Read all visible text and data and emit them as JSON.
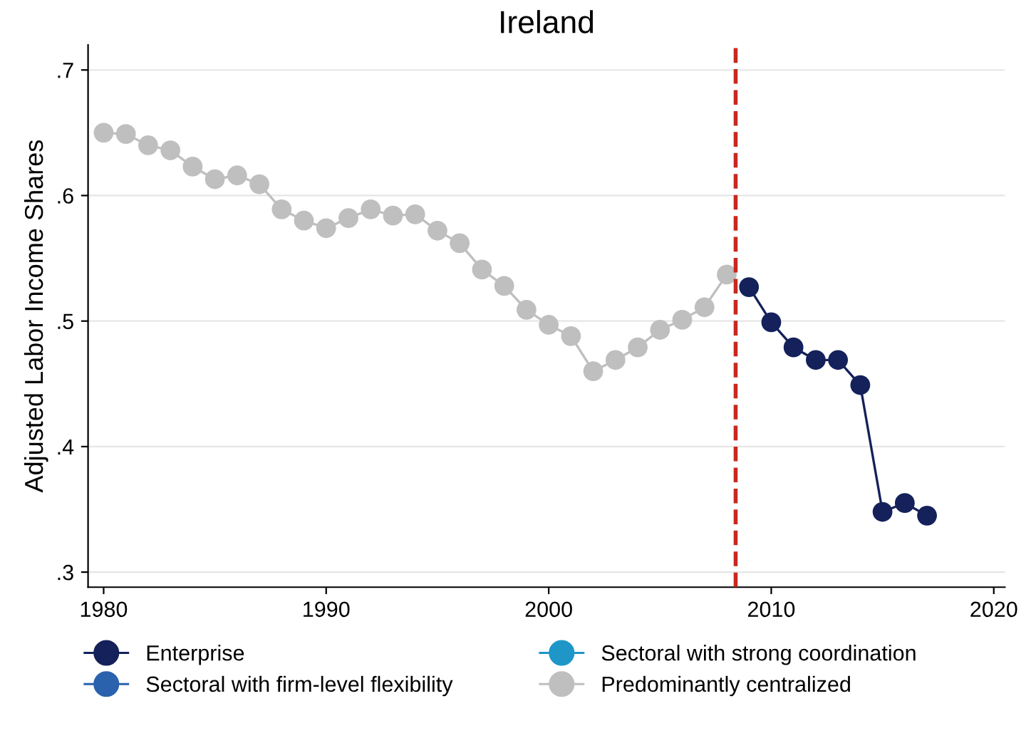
{
  "chart_data": {
    "type": "line",
    "title": "Ireland",
    "ylabel": "Adjusted Labor Income Shares",
    "xlim": [
      1979.3,
      2020.5
    ],
    "xticks": [
      1980,
      1990,
      2000,
      2010,
      2020
    ],
    "ylim": [
      0.288,
      0.72
    ],
    "yticks": [
      {
        "value": 0.3,
        "label": ".3"
      },
      {
        "value": 0.4,
        "label": ".4"
      },
      {
        "value": 0.5,
        "label": ".5"
      },
      {
        "value": 0.6,
        "label": ".6"
      },
      {
        "value": 0.7,
        "label": ".7"
      }
    ],
    "grid": "y",
    "legend": "bottom",
    "marker": "circle",
    "line_style": "solid",
    "ref_lines": [
      {
        "axis": "x",
        "value": 2008.4,
        "color": "#c8281e",
        "line_style": "dashed"
      }
    ],
    "series": [
      {
        "name": "Enterprise",
        "color": "#14215a",
        "x": [
          2009,
          2010,
          2011,
          2012,
          2013,
          2014,
          2015,
          2016,
          2017
        ],
        "values": [
          0.527,
          0.499,
          0.479,
          0.469,
          0.469,
          0.449,
          0.348,
          0.355,
          0.345
        ]
      },
      {
        "name": "Sectoral with firm-level flexibility",
        "color": "#2a62ad"
      },
      {
        "name": "Sectoral with strong coordination",
        "color": "#1e96c8"
      },
      {
        "name": "Predominantly centralized",
        "color": "#bfbfbf",
        "x": [
          1980,
          1981,
          1982,
          1983,
          1984,
          1985,
          1986,
          1987,
          1988,
          1989,
          1990,
          1991,
          1992,
          1993,
          1994,
          1995,
          1996,
          1997,
          1998,
          1999,
          2000,
          2001,
          2002,
          2003,
          2004,
          2005,
          2006,
          2007,
          2008
        ],
        "values": [
          0.65,
          0.649,
          0.64,
          0.636,
          0.623,
          0.613,
          0.616,
          0.609,
          0.589,
          0.58,
          0.574,
          0.582,
          0.589,
          0.584,
          0.585,
          0.572,
          0.562,
          0.541,
          0.528,
          0.509,
          0.497,
          0.488,
          0.46,
          0.469,
          0.479,
          0.493,
          0.501,
          0.511,
          0.537
        ]
      }
    ]
  }
}
